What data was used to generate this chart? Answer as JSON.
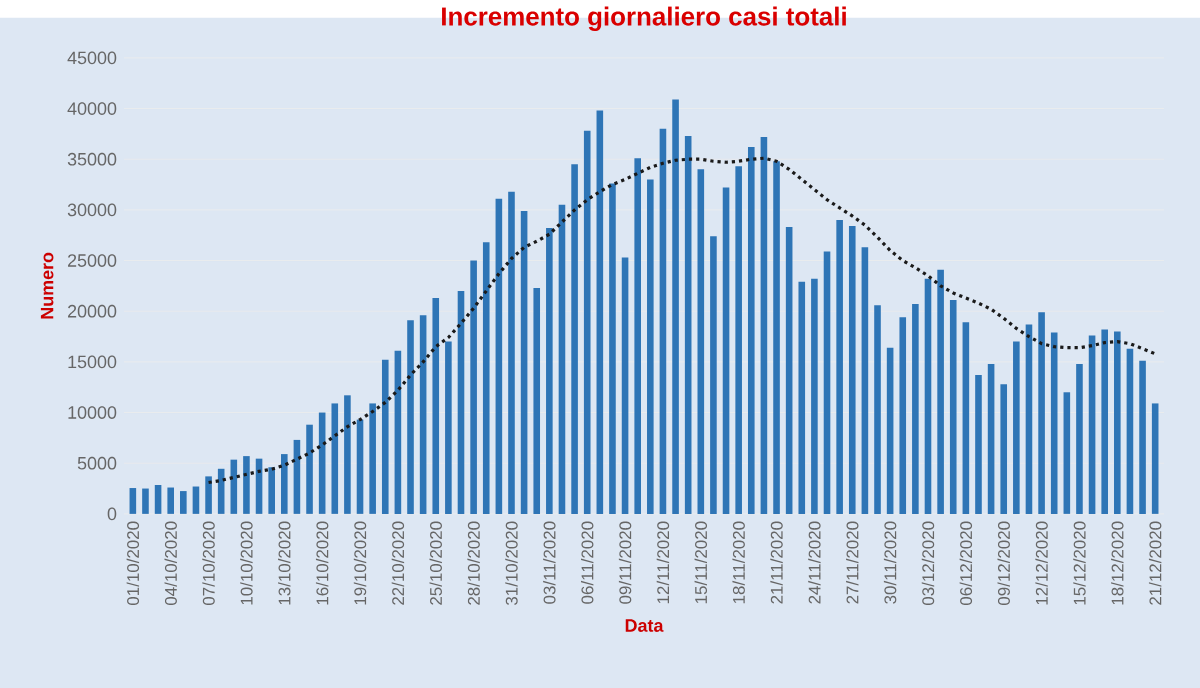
{
  "chart_data": {
    "type": "bar",
    "title": "Incremento giornaliero casi totali",
    "xlabel": "Data",
    "ylabel": "Numero",
    "categories": [
      "01/10/2020",
      null,
      null,
      "04/10/2020",
      null,
      null,
      "07/10/2020",
      null,
      null,
      "10/10/2020",
      null,
      null,
      "13/10/2020",
      null,
      null,
      "16/10/2020",
      null,
      null,
      "19/10/2020",
      null,
      null,
      "22/10/2020",
      null,
      null,
      "25/10/2020",
      null,
      null,
      "28/10/2020",
      null,
      null,
      "31/10/2020",
      null,
      null,
      "03/11/2020",
      null,
      null,
      "06/11/2020",
      null,
      null,
      "09/11/2020",
      null,
      null,
      "12/11/2020",
      null,
      null,
      "15/11/2020",
      null,
      null,
      "18/11/2020",
      null,
      null,
      "21/11/2020",
      null,
      null,
      "24/11/2020",
      null,
      null,
      "27/11/2020",
      null,
      null,
      "30/11/2020",
      null,
      null,
      "03/12/2020",
      null,
      null,
      "06/12/2020",
      null,
      null,
      "09/12/2020",
      null,
      null,
      "12/12/2020",
      null,
      null,
      "15/12/2020",
      null,
      null,
      "18/12/2020",
      null,
      null,
      "21/12/2020"
    ],
    "series": [
      {
        "color": "#2e75b6",
        "values": [
          2550,
          2500,
          2850,
          2600,
          2250,
          2700,
          3700,
          4450,
          5350,
          5700,
          5450,
          4600,
          5900,
          7300,
          8800,
          10000,
          10900,
          11700,
          9300,
          10900,
          15200,
          16100,
          19100,
          19600,
          21300,
          17000,
          22000,
          25000,
          26800,
          31100,
          31800,
          29900,
          22300,
          28200,
          30500,
          34500,
          37800,
          39800,
          32600,
          25300,
          35100,
          33000,
          38000,
          40900,
          37300,
          34000,
          27400,
          32200,
          34300,
          36200,
          37200,
          34800,
          28300,
          22900,
          23200,
          25900,
          29000,
          28400,
          26300,
          20600,
          16400,
          19400,
          20700,
          23200,
          24100,
          21100,
          18900,
          13700,
          14800,
          12800,
          17000,
          18700,
          19900,
          17900,
          12000,
          14800,
          17600,
          18200,
          18000,
          16300,
          15100,
          10900
        ]
      },
      {
        "type": "line",
        "color": "#1a1a1a",
        "line_style": "dotted",
        "values": [
          null,
          null,
          null,
          null,
          null,
          null,
          3100,
          3300,
          3600,
          3900,
          4200,
          4400,
          4800,
          5400,
          6000,
          6800,
          7700,
          8600,
          9300,
          10100,
          11000,
          12200,
          13700,
          15000,
          16500,
          17400,
          18800,
          20300,
          22000,
          23700,
          25200,
          26300,
          26900,
          27600,
          28800,
          30000,
          31000,
          31800,
          32500,
          33000,
          33600,
          34200,
          34600,
          34900,
          35000,
          35000,
          34800,
          34700,
          34800,
          35000,
          35100,
          34800,
          34000,
          33000,
          32000,
          31000,
          30200,
          29400,
          28500,
          27300,
          26000,
          25000,
          24300,
          23500,
          22500,
          21800,
          21300,
          20800,
          20200,
          19300,
          18300,
          17500,
          16800,
          16500,
          16400,
          16400,
          16600,
          16900,
          17000,
          16800,
          16300,
          15800
        ]
      }
    ],
    "ylim": [
      0,
      45000
    ],
    "yticks": [
      0,
      5000,
      10000,
      15000,
      20000,
      25000,
      30000,
      35000,
      40000,
      45000
    ],
    "grid": "y"
  }
}
